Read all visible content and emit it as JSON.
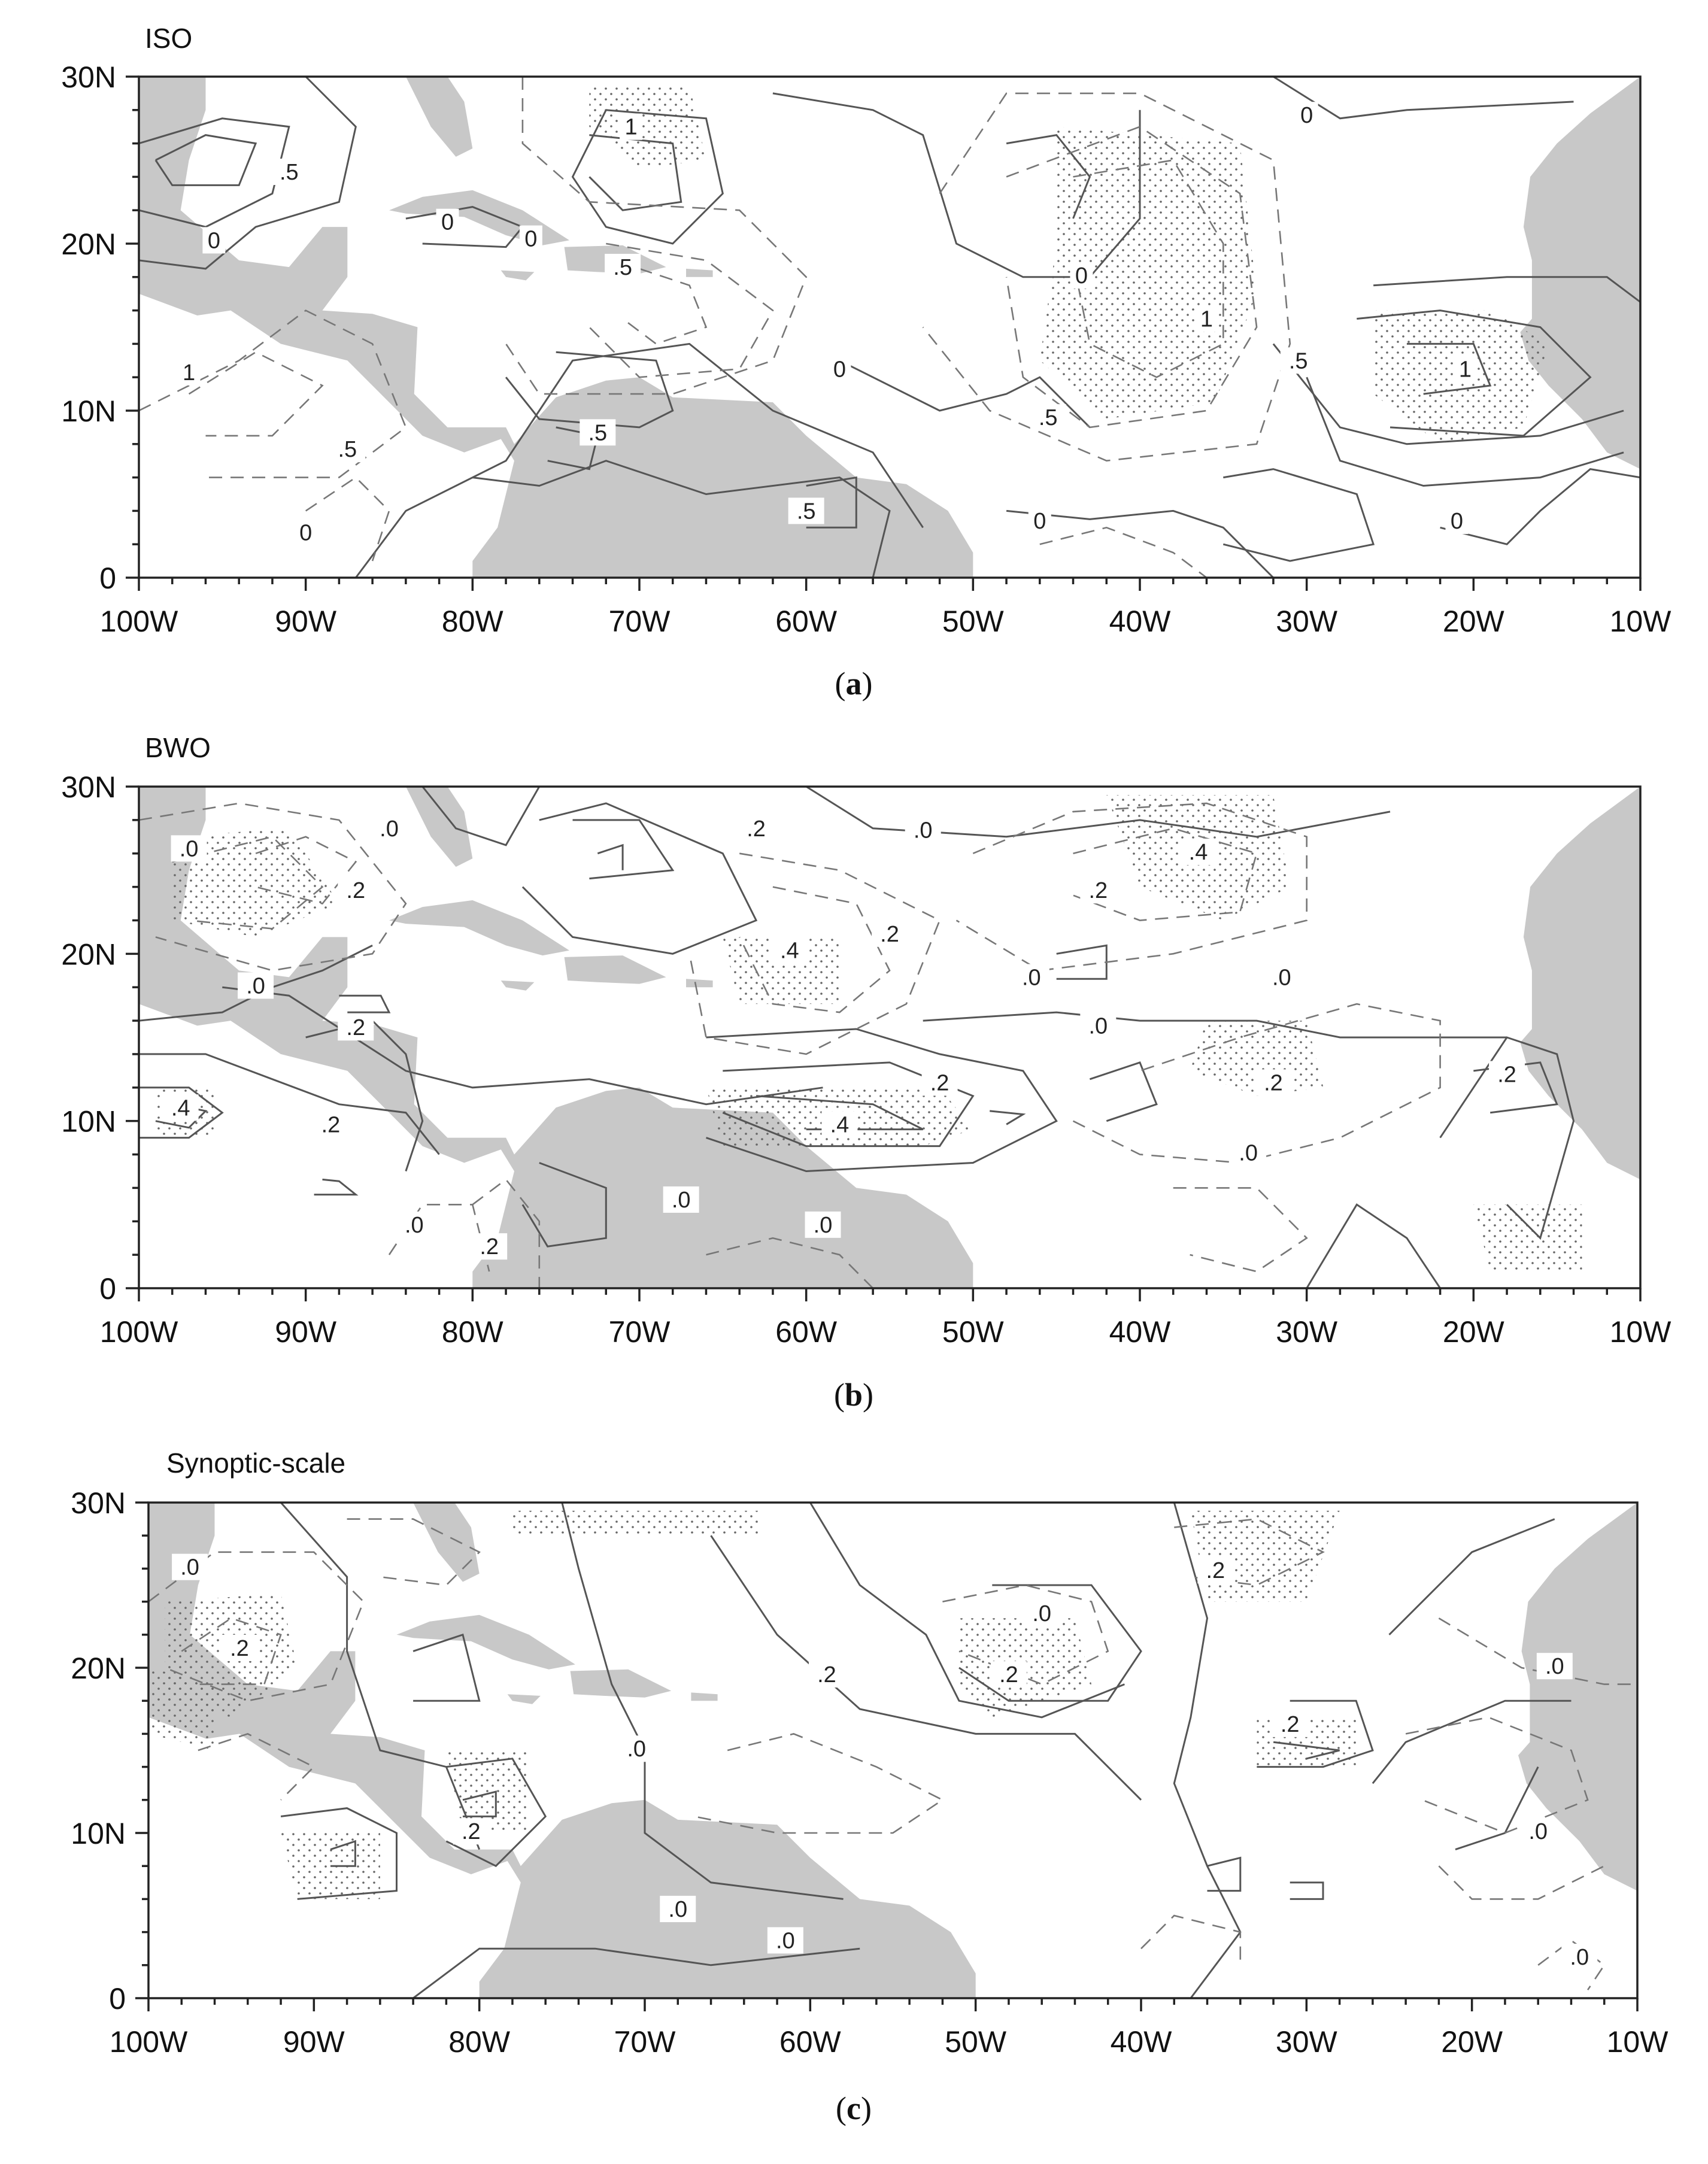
{
  "chart_data": [
    {
      "type": "contour",
      "panel_title": "ISO",
      "caption": "a",
      "x_ticks": [
        "100W",
        "90W",
        "80W",
        "70W",
        "60W",
        "50W",
        "40W",
        "30W",
        "20W",
        "10W"
      ],
      "y_ticks": [
        "30N",
        "20N",
        "10N",
        "0"
      ],
      "xlim": [
        -100,
        -10
      ],
      "ylim": [
        0,
        30
      ],
      "contour_labels": [
        {
          "text": "1",
          "lon": -70.5,
          "lat": 27
        },
        {
          "text": ".5",
          "lon": -91,
          "lat": 24.3
        },
        {
          "text": "0",
          "lon": -95.5,
          "lat": 20.2
        },
        {
          "text": "0",
          "lon": -81.5,
          "lat": 21.3
        },
        {
          "text": "0",
          "lon": -76.5,
          "lat": 20.3
        },
        {
          "text": ".5",
          "lon": -71,
          "lat": 18.6
        },
        {
          "text": "0",
          "lon": -43.5,
          "lat": 18.1
        },
        {
          "text": "0",
          "lon": -30,
          "lat": 27.7
        },
        {
          "text": "1",
          "lon": -36,
          "lat": 15.5
        },
        {
          "text": ".5",
          "lon": -30.5,
          "lat": 13
        },
        {
          "text": "1",
          "lon": -20.5,
          "lat": 12.5
        },
        {
          "text": "1",
          "lon": -97,
          "lat": 12.3
        },
        {
          "text": "0",
          "lon": -58,
          "lat": 12.5
        },
        {
          "text": ".5",
          "lon": -45.5,
          "lat": 9.6
        },
        {
          "text": ".5",
          "lon": -87.5,
          "lat": 7.7
        },
        {
          "text": ".5",
          "lon": -72.5,
          "lat": 8.7
        },
        {
          "text": ".5",
          "lon": -60,
          "lat": 4
        },
        {
          "text": "0",
          "lon": -90,
          "lat": 2.7
        },
        {
          "text": "0",
          "lon": -46,
          "lat": 3.4
        },
        {
          "text": "0",
          "lon": -21,
          "lat": 3.4
        }
      ]
    },
    {
      "type": "contour",
      "panel_title": "BWO",
      "caption": "b",
      "x_ticks": [
        "100W",
        "90W",
        "80W",
        "70W",
        "60W",
        "50W",
        "40W",
        "30W",
        "20W",
        "10W"
      ],
      "y_ticks": [
        "30N",
        "20N",
        "10N",
        "0"
      ],
      "xlim": [
        -100,
        -10
      ],
      "ylim": [
        0,
        30
      ],
      "contour_labels": [
        {
          "text": ".0",
          "lon": -97,
          "lat": 26.3
        },
        {
          "text": ".0",
          "lon": -85,
          "lat": 27.5
        },
        {
          "text": ".2",
          "lon": -87,
          "lat": 23.8
        },
        {
          "text": ".2",
          "lon": -63,
          "lat": 27.5
        },
        {
          "text": ".0",
          "lon": -53,
          "lat": 27.4
        },
        {
          "text": ".4",
          "lon": -36.5,
          "lat": 26.1
        },
        {
          "text": ".2",
          "lon": -42.5,
          "lat": 23.8
        },
        {
          "text": ".2",
          "lon": -55,
          "lat": 21.2
        },
        {
          "text": ".4",
          "lon": -61,
          "lat": 20.2
        },
        {
          "text": ".0",
          "lon": -93,
          "lat": 18.1
        },
        {
          "text": ".0",
          "lon": -46.5,
          "lat": 18.6
        },
        {
          "text": ".0",
          "lon": -31.5,
          "lat": 18.6
        },
        {
          "text": ".2",
          "lon": -87,
          "lat": 15.6
        },
        {
          "text": ".0",
          "lon": -42.5,
          "lat": 15.7
        },
        {
          "text": ".2",
          "lon": -18,
          "lat": 12.8
        },
        {
          "text": ".4",
          "lon": -97.5,
          "lat": 10.8
        },
        {
          "text": ".2",
          "lon": -88.5,
          "lat": 9.8
        },
        {
          "text": ".4",
          "lon": -58,
          "lat": 9.8
        },
        {
          "text": ".2",
          "lon": -52,
          "lat": 12.3
        },
        {
          "text": ".2",
          "lon": -32,
          "lat": 12.3
        },
        {
          "text": ".0",
          "lon": -33.5,
          "lat": 8.1
        },
        {
          "text": ".0",
          "lon": -67.5,
          "lat": 5.3
        },
        {
          "text": ".0",
          "lon": -59,
          "lat": 3.8
        },
        {
          "text": ".0",
          "lon": -83.5,
          "lat": 3.8
        },
        {
          "text": ".2",
          "lon": -79,
          "lat": 2.5
        }
      ]
    },
    {
      "type": "contour",
      "panel_title": "Synoptic-scale",
      "caption": "c",
      "x_ticks": [
        "100W",
        "90W",
        "80W",
        "70W",
        "60W",
        "50W",
        "40W",
        "30W",
        "20W",
        "10W"
      ],
      "y_ticks": [
        "30N",
        "20N",
        "10N",
        "0"
      ],
      "xlim": [
        -100,
        -10
      ],
      "ylim": [
        0,
        30
      ],
      "contour_labels": [
        {
          "text": ".0",
          "lon": -97.5,
          "lat": 26.1
        },
        {
          "text": ".2",
          "lon": -94.5,
          "lat": 21.2
        },
        {
          "text": ".2",
          "lon": -35.5,
          "lat": 25.9
        },
        {
          "text": ".0",
          "lon": -46,
          "lat": 23.3
        },
        {
          "text": ".2",
          "lon": -59,
          "lat": 19.6
        },
        {
          "text": ".2",
          "lon": -48,
          "lat": 19.6
        },
        {
          "text": ".0",
          "lon": -15,
          "lat": 20.1
        },
        {
          "text": ".0",
          "lon": -70.5,
          "lat": 15.1
        },
        {
          "text": ".2",
          "lon": -31,
          "lat": 16.6
        },
        {
          "text": ".2",
          "lon": -80.5,
          "lat": 10.1
        },
        {
          "text": ".0",
          "lon": -16,
          "lat": 10.1
        },
        {
          "text": ".0",
          "lon": -68,
          "lat": 5.4
        },
        {
          "text": ".0",
          "lon": -61.5,
          "lat": 3.5
        },
        {
          "text": ".0",
          "lon": -13.5,
          "lat": 2.5
        }
      ]
    }
  ]
}
